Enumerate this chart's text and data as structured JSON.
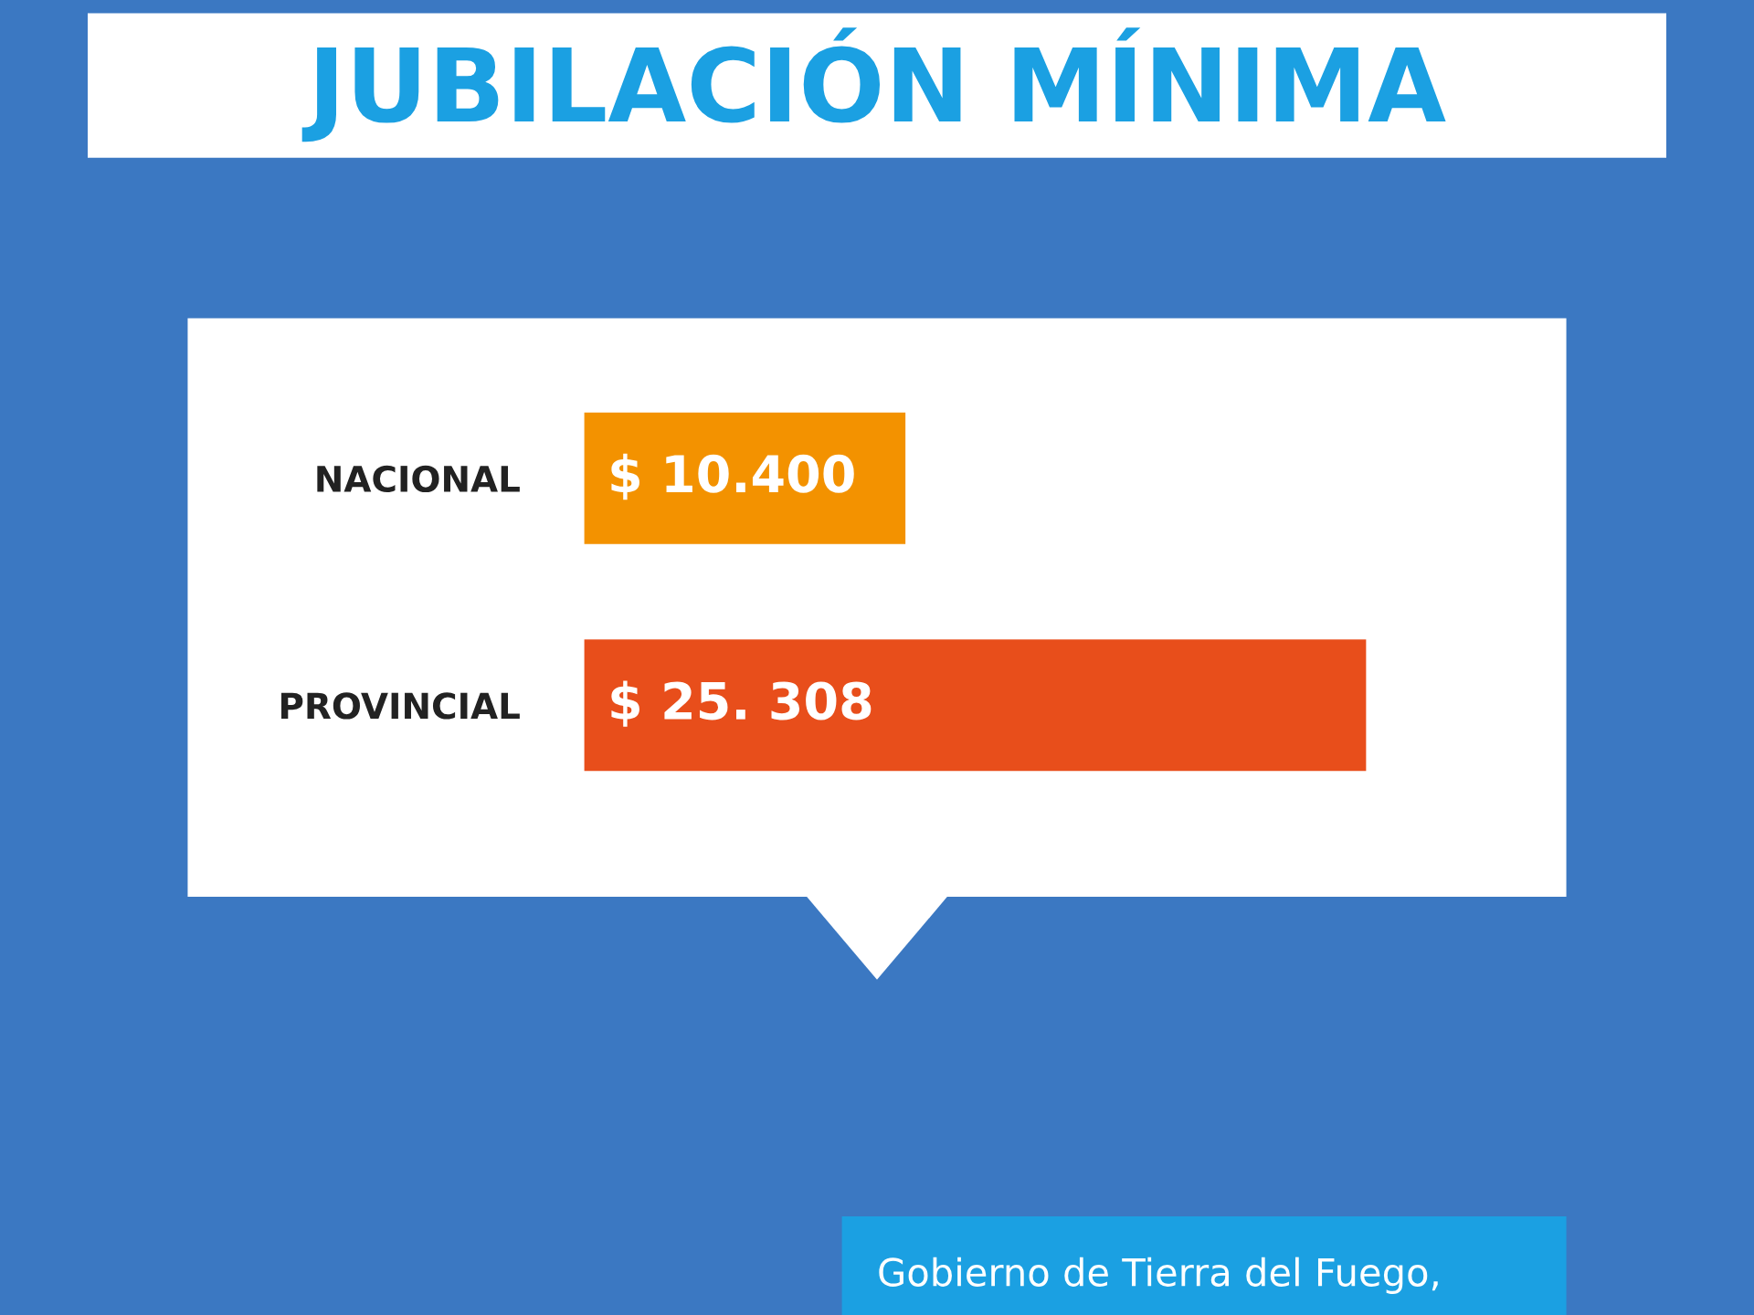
{
  "chart_data": {
    "type": "bar",
    "orientation": "horizontal",
    "title": "JUBILACIÓN MÍNIMA",
    "categories": [
      "NACIONAL",
      "PROVINCIAL"
    ],
    "values": [
      10400,
      25308
    ],
    "colors": [
      "#f39200",
      "#e84e1b"
    ],
    "value_labels": [
      "$ 10.400",
      "$ 25. 308"
    ],
    "annotations": [
      "Gobierno de Tierra del Fuego,"
    ]
  }
}
